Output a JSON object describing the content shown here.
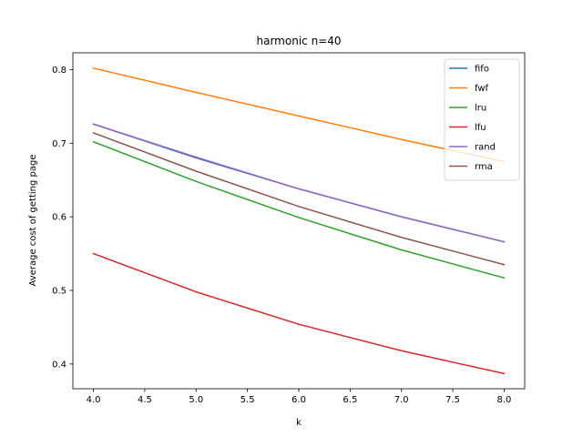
{
  "chart_data": {
    "type": "line",
    "title": "harmonic n=40",
    "xlabel": "k",
    "ylabel": "Average cost of getting page",
    "x": [
      4,
      5,
      6,
      7,
      8
    ],
    "xlim": [
      3.8,
      8.2
    ],
    "ylim": [
      0.3664,
      0.8228
    ],
    "xticks": [
      "4.0",
      "4.5",
      "5.0",
      "5.5",
      "6.0",
      "6.5",
      "7.0",
      "7.5",
      "8.0"
    ],
    "yticks": [
      "0.4",
      "0.5",
      "0.6",
      "0.7",
      "0.8"
    ],
    "grid": false,
    "legend_position": "top-right",
    "series": [
      {
        "name": "fifo",
        "color": "#1f77b4",
        "values": [
          0.726,
          0.68,
          0.638,
          0.6,
          0.566
        ]
      },
      {
        "name": "fwf",
        "color": "#ff7f0e",
        "values": [
          0.802,
          0.769,
          0.737,
          0.705,
          0.675
        ]
      },
      {
        "name": "lru",
        "color": "#2ca02c",
        "values": [
          0.702,
          0.648,
          0.599,
          0.555,
          0.517
        ]
      },
      {
        "name": "lfu",
        "color": "#d62728",
        "values": [
          0.55,
          0.498,
          0.454,
          0.418,
          0.387
        ]
      },
      {
        "name": "rand",
        "color": "#9467bd",
        "values": [
          0.726,
          0.681,
          0.638,
          0.6,
          0.566
        ]
      },
      {
        "name": "rma",
        "color": "#8c564b",
        "values": [
          0.714,
          0.662,
          0.614,
          0.572,
          0.535
        ]
      }
    ]
  }
}
